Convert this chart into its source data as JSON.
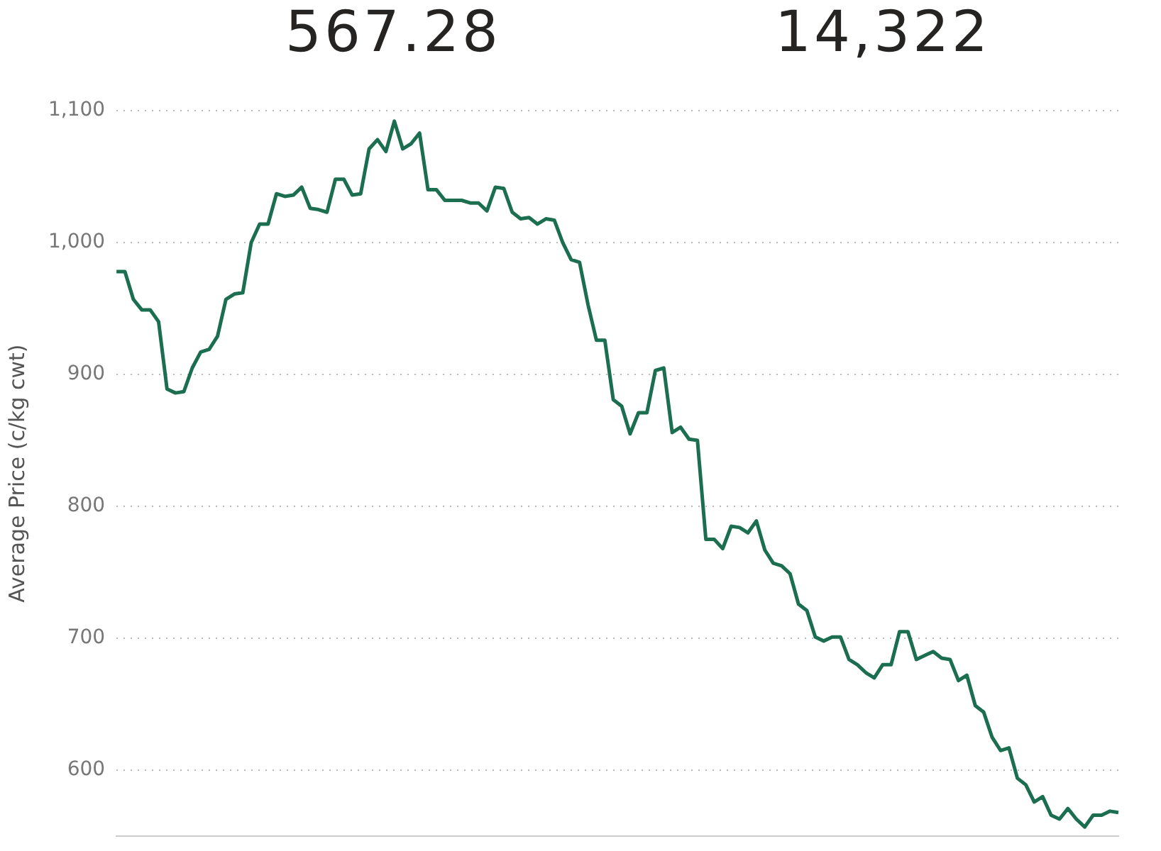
{
  "chart_data": {
    "type": "line",
    "ylabel": "Average Price (c/kg cwt)",
    "annotations": [
      "567.28",
      "14,322"
    ],
    "categories": [
      null,
      null,
      null,
      null,
      null,
      null,
      null,
      null,
      null,
      null,
      null,
      null,
      null,
      null,
      null,
      null,
      null,
      null,
      null,
      null,
      null,
      null,
      null,
      null,
      null,
      null,
      null,
      null,
      null,
      null,
      null,
      null,
      null,
      null,
      null,
      null,
      null,
      null,
      null,
      null,
      null,
      null,
      null,
      null,
      null,
      null,
      null,
      null,
      null,
      null,
      null,
      null,
      null,
      null,
      null,
      null,
      null,
      null,
      null,
      null,
      null,
      null,
      null,
      null,
      null,
      null,
      null,
      null,
      null,
      null,
      null,
      null,
      null,
      null,
      null,
      null,
      null,
      null,
      null,
      null,
      null,
      null,
      null,
      null,
      null,
      null,
      null,
      null,
      null,
      null,
      null,
      null,
      null,
      null,
      null,
      null,
      null,
      null,
      null,
      null,
      null,
      null,
      null,
      null,
      null,
      null,
      null,
      null,
      null,
      null,
      null,
      null,
      null,
      null,
      null,
      null,
      null,
      null,
      null,
      null
    ],
    "series": [
      {
        "color": "#1b6e4f",
        "values": [
          978,
          978,
          957,
          949,
          949,
          940,
          889,
          886,
          887,
          905,
          917,
          919,
          929,
          957,
          961,
          962,
          1000,
          1014,
          1014,
          1037,
          1035,
          1036,
          1042,
          1026,
          1025,
          1023,
          1048,
          1048,
          1036,
          1037,
          1071,
          1078,
          1069,
          1092,
          1071,
          1075,
          1083,
          1040,
          1040,
          1032,
          1032,
          1032,
          1030,
          1030,
          1024,
          1042,
          1041,
          1023,
          1018,
          1019,
          1014,
          1018,
          1017,
          1000,
          987,
          985,
          953,
          926,
          926,
          881,
          876,
          855,
          871,
          871,
          903,
          905,
          856,
          860,
          851,
          850,
          775,
          775,
          768,
          785,
          784,
          780,
          789,
          767,
          757,
          755,
          749,
          726,
          721,
          701,
          698,
          701,
          701,
          684,
          680,
          674,
          670,
          680,
          680,
          705,
          705,
          684,
          687,
          690,
          685,
          684,
          668,
          672,
          649,
          644,
          625,
          615,
          617,
          594,
          589,
          576,
          580,
          566,
          563,
          571,
          563,
          557,
          566,
          566,
          569,
          568
        ]
      }
    ],
    "ylim": [
      550,
      1100
    ],
    "yticks": [
      {
        "value": 600,
        "label": "600"
      },
      {
        "value": 700,
        "label": "700"
      },
      {
        "value": 800,
        "label": "800"
      },
      {
        "value": 900,
        "label": "900"
      },
      {
        "value": 1000,
        "label": "1,000"
      },
      {
        "value": 1100,
        "label": "1,100"
      }
    ],
    "grid": "y",
    "legend": false,
    "tick_labels": "y",
    "marker": "none",
    "line_style": "solid"
  }
}
